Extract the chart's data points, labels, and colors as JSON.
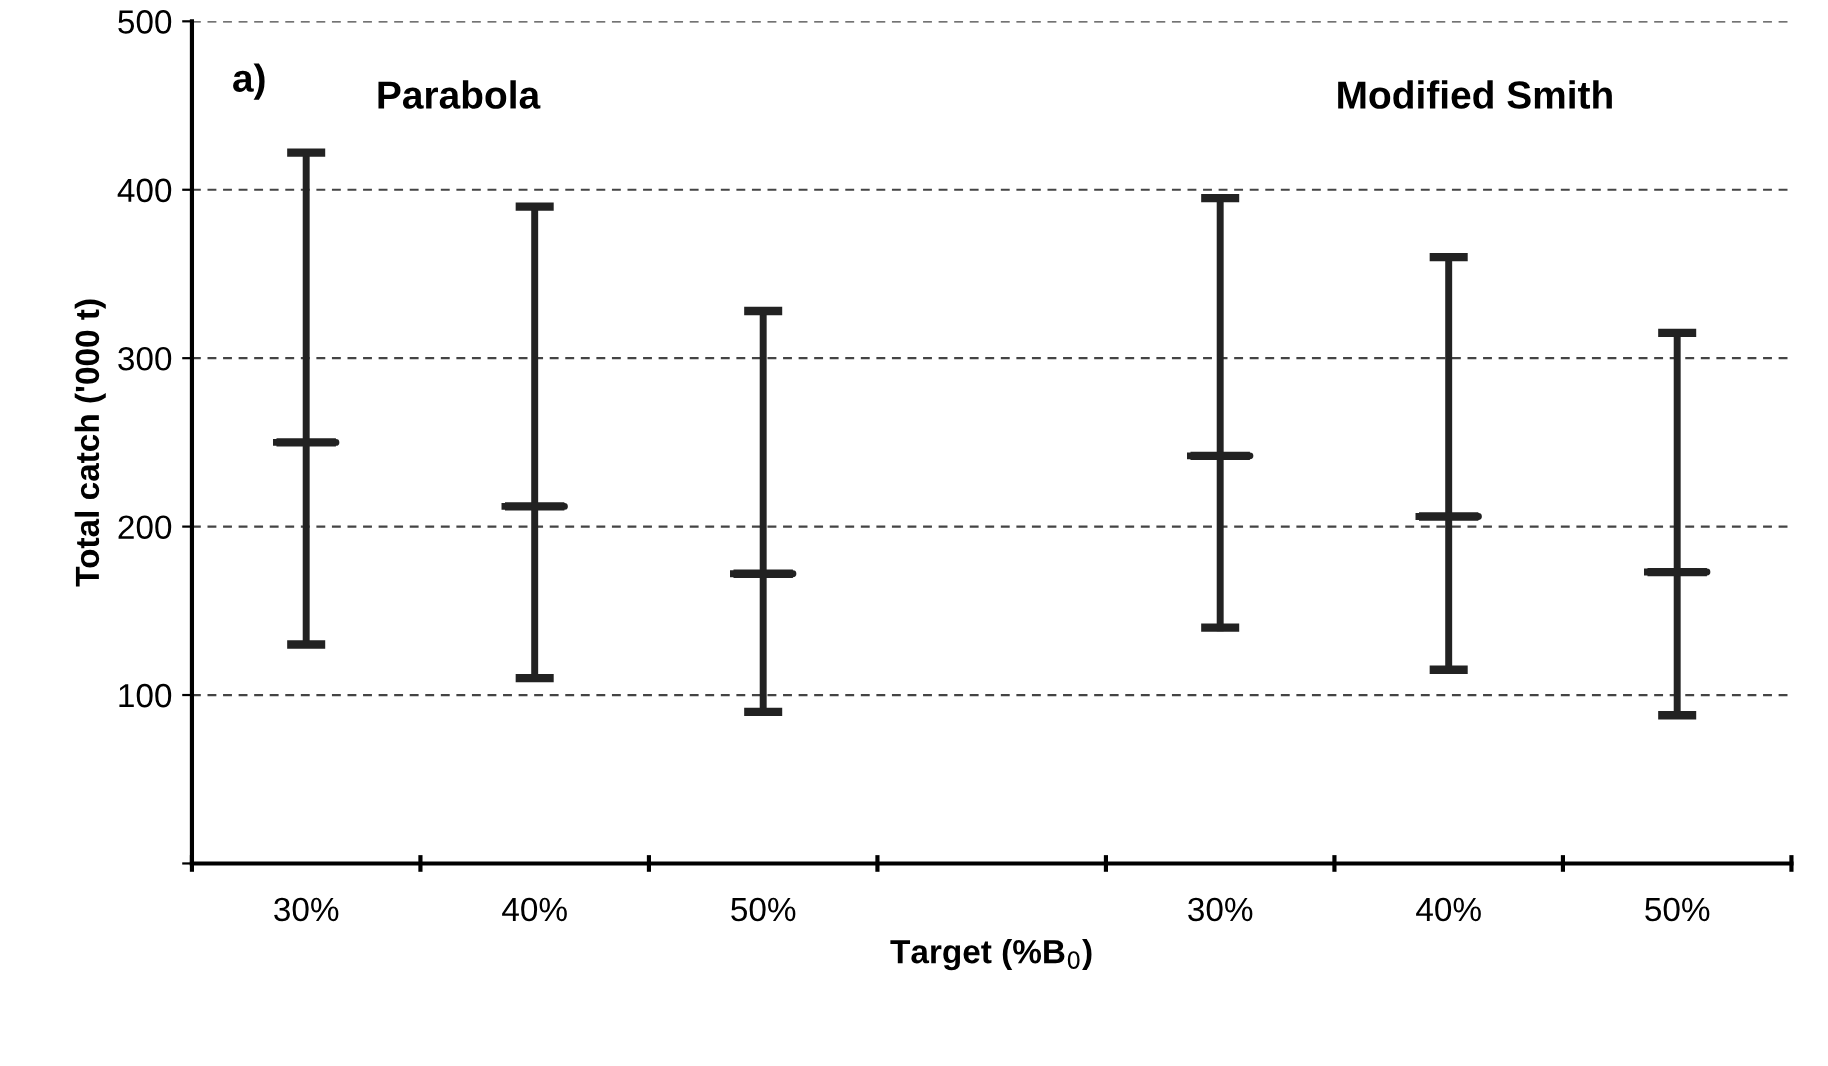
{
  "chart_data": {
    "type": "box",
    "xlabel": "Target (%B$_{0}$)",
    "ylabel": "Total catch ('000 t)",
    "categories": [
      "30%",
      "40%",
      "50%",
      null,
      "30%",
      "40%",
      "50%"
    ],
    "boxes": [
      {
        "low": 130,
        "q1": 250,
        "median": 250,
        "q3": 250,
        "high": 422
      },
      {
        "low": 110,
        "q1": 212,
        "median": 212,
        "q3": 212,
        "high": 390
      },
      {
        "low": 90,
        "q1": 172,
        "median": 172,
        "q3": 172,
        "high": 328
      },
      null,
      {
        "low": 140,
        "q1": 242,
        "median": 242,
        "q3": 242,
        "high": 395
      },
      {
        "low": 115,
        "q1": 206,
        "median": 206,
        "q3": 206,
        "high": 360
      },
      {
        "low": 88,
        "q1": 173,
        "median": 173,
        "q3": 173,
        "high": 315
      }
    ],
    "color": "#222222",
    "ylim": [
      0,
      500
    ],
    "yticks": [
      {
        "value": 0,
        "label": null
      },
      100,
      200,
      300,
      400,
      500
    ],
    "grid": "y",
    "annotations": [
      "a)",
      "Parabola",
      "Modified Smith"
    ]
  }
}
